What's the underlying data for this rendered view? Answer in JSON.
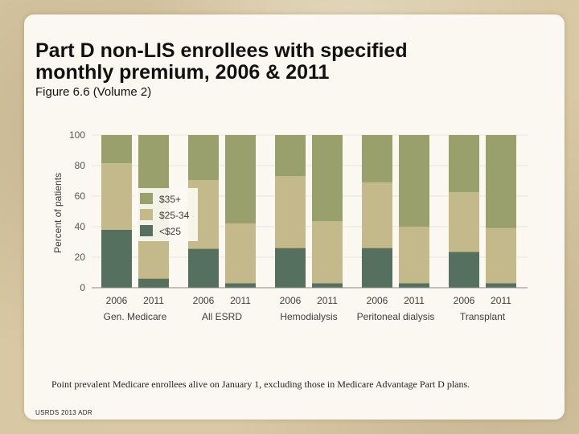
{
  "slide": {
    "title": "Part D non-LIS enrollees with specified monthly premium, 2006 & 2011",
    "subtitle": "Figure 6.6 (Volume 2)",
    "footnote": "Point prevalent Medicare enrollees alive on January 1, excluding those in Medicare Advantage Part D plans.",
    "source": "USRDS 2013 ADR"
  },
  "colors": {
    "low": "#55705f",
    "mid": "#c4b98b",
    "high": "#9aa06b",
    "grid": "#e6e3da",
    "axis": "#888888"
  },
  "chart_data": {
    "type": "bar",
    "stacked": true,
    "title": "",
    "xlabel": "",
    "ylabel": "Percent of patients",
    "ylim": [
      0,
      100
    ],
    "yticks": [
      0,
      20,
      40,
      60,
      80,
      100
    ],
    "groups": [
      "Gen. Medicare",
      "All ESRD",
      "Hemodialysis",
      "Peritoneal dialysis",
      "Transplant"
    ],
    "categories": [
      "2006",
      "2011",
      "2006",
      "2011",
      "2006",
      "2011",
      "2006",
      "2011",
      "2006",
      "2011"
    ],
    "series": [
      {
        "name": "<$25",
        "values": [
          38,
          6,
          25.5,
          3,
          26,
          3,
          26,
          3,
          23.5,
          3
        ]
      },
      {
        "name": "$25-34",
        "values": [
          43.5,
          25,
          45,
          39,
          47,
          40.5,
          43,
          37,
          39,
          36
        ]
      },
      {
        "name": "$35+",
        "values": [
          18.5,
          69,
          29.5,
          58,
          27,
          56.5,
          31,
          60,
          37.5,
          61
        ]
      }
    ],
    "legend": {
      "position": "upper-left-inside",
      "entries": [
        "$35+",
        "$25-34",
        "<$25"
      ]
    }
  }
}
